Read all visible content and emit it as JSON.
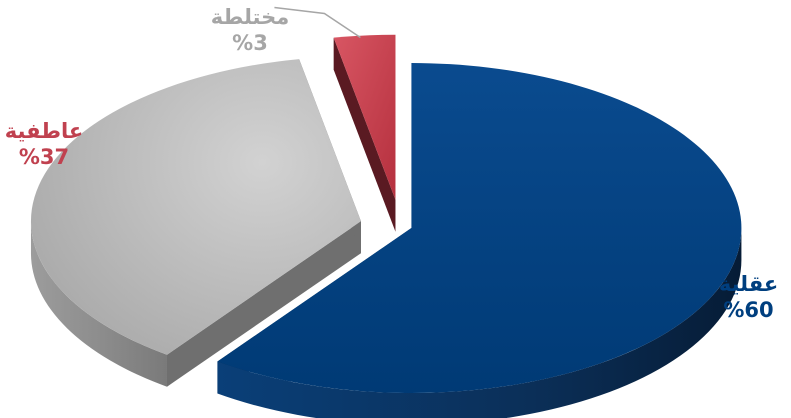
{
  "chart_data": {
    "type": "pie",
    "style": "3d-exploded",
    "slices": [
      {
        "label": "عقلية",
        "value": 60,
        "value_label": "%60",
        "color": "#003f7f",
        "label_color": "#003f7f"
      },
      {
        "label": "عاطفية",
        "value": 37,
        "value_label": "%37",
        "color": "#bfbfbf",
        "label_color": "#c0414f"
      },
      {
        "label": "مختلطة",
        "value": 3,
        "value_label": "%3",
        "color": "#c94452",
        "label_color": "#a6a6a6"
      }
    ],
    "title": "",
    "legend": "none"
  }
}
